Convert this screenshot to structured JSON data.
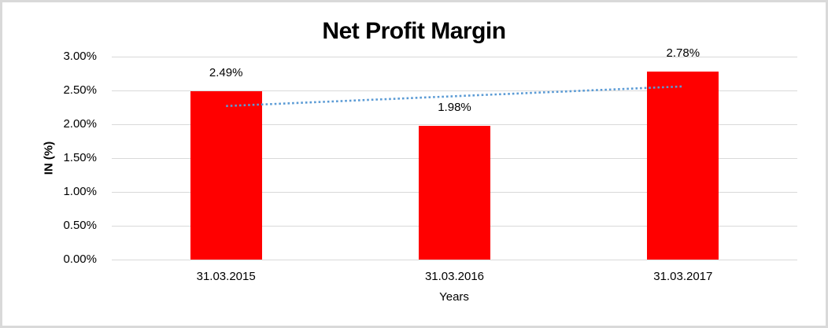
{
  "chart_data": {
    "type": "bar",
    "title": "Net Profit Margin",
    "xlabel": "Years",
    "ylabel": "IN (%)",
    "categories": [
      "31.03.2015",
      "31.03.2016",
      "31.03.2017"
    ],
    "values": [
      2.49,
      1.98,
      2.78
    ],
    "data_labels": [
      "2.49%",
      "1.98%",
      "2.78%"
    ],
    "ylim": [
      0,
      3
    ],
    "ytick_step": 0.5,
    "ytick_labels": [
      "0.00%",
      "0.50%",
      "1.00%",
      "1.50%",
      "2.00%",
      "2.50%",
      "3.00%"
    ],
    "grid": true,
    "legend": false,
    "bar_color": "#ff0000",
    "gridline_color": "#d9d9d9",
    "trendline": {
      "type": "linear",
      "style": "dotted",
      "color": "#5b9bd5",
      "start_value": 2.27,
      "end_value": 2.56
    }
  }
}
